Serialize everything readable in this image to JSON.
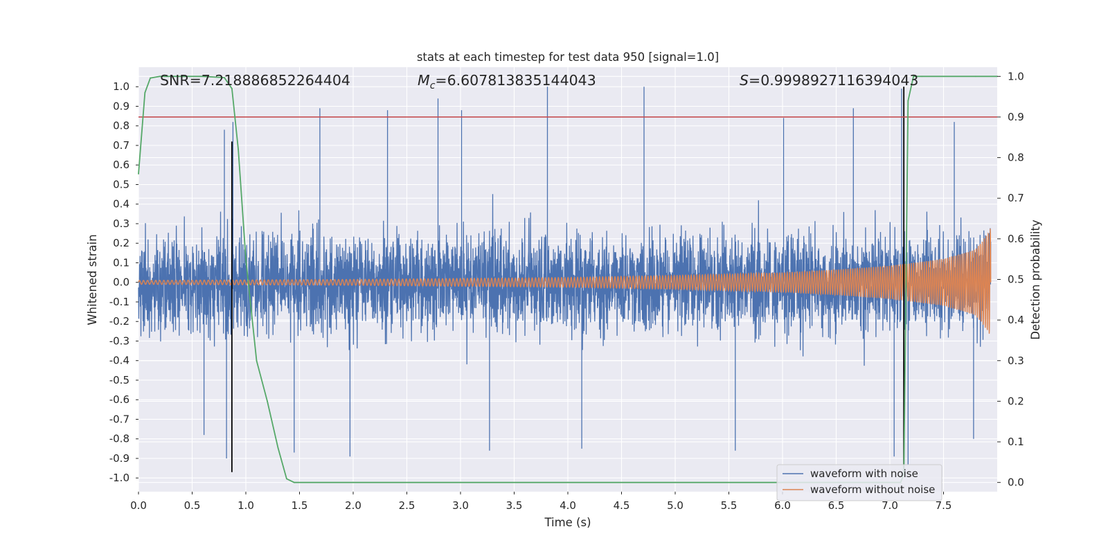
{
  "chart_data": {
    "type": "line",
    "title": "stats at each timestep for test data 950 [signal=1.0]",
    "xlabel": "Time (s)",
    "ylabel": "Whitened strain",
    "y2label": "Detection probability",
    "xlim": [
      0.0,
      8.0
    ],
    "ylim": [
      -1.07,
      1.1
    ],
    "y2lim": [
      -0.0227,
      1.0227
    ],
    "xticks": [
      0.0,
      0.5,
      1.0,
      1.5,
      2.0,
      2.5,
      3.0,
      3.5,
      4.0,
      4.5,
      5.0,
      5.5,
      6.0,
      6.5,
      7.0,
      7.5
    ],
    "xtick_labels": [
      "0.0",
      "0.5",
      "1.0",
      "1.5",
      "2.0",
      "2.5",
      "3.0",
      "3.5",
      "4.0",
      "4.5",
      "5.0",
      "5.5",
      "6.0",
      "6.5",
      "7.0",
      "7.5"
    ],
    "yticks": [
      1.0,
      0.9,
      0.8,
      0.7,
      0.6,
      0.5,
      0.4,
      0.3,
      0.2,
      0.1,
      0.0,
      -0.1,
      -0.2,
      -0.3,
      -0.4,
      -0.5,
      -0.6,
      -0.7,
      -0.8,
      -0.9,
      -1.0
    ],
    "ytick_labels": [
      "1.0",
      "0.9",
      "0.8",
      "0.7",
      "0.6",
      "0.5",
      "0.4",
      "0.3",
      "0.2",
      "0.1",
      "0.0",
      "-0.1",
      "-0.2",
      "-0.3",
      "-0.4",
      "-0.5",
      "-0.6",
      "-0.7",
      "-0.8",
      "-0.9",
      "-1.0"
    ],
    "y2ticks": [
      1.0,
      0.9,
      0.8,
      0.7,
      0.6,
      0.5,
      0.4,
      0.3,
      0.2,
      0.1,
      0.0
    ],
    "y2tick_labels": [
      "1.0",
      "0.9",
      "0.8",
      "0.7",
      "0.6",
      "0.5",
      "0.4",
      "0.3",
      "0.2",
      "0.1",
      "0.0"
    ],
    "annotations": {
      "snr": "SNR=7.218886852264404",
      "mc_symbol": "M",
      "mc_sub": "c",
      "mc_value": "=6.607813835144043",
      "s_symbol": "S",
      "s_value": "=0.9998927116394043"
    },
    "threshold": {
      "value": 0.9,
      "axis": "right",
      "color": "#c44e52"
    },
    "vertical_markers": [
      {
        "x": 0.87,
        "y_range": [
          -0.97,
          0.72
        ]
      },
      {
        "x": 7.13,
        "y_range": [
          -0.97,
          1.0
        ]
      }
    ],
    "series": [
      {
        "name": "waveform with noise",
        "color": "#4c72b0",
        "axis": "left",
        "start": 0.0,
        "end": 7.94,
        "amplitude_envelope": {
          "typical": 0.4,
          "max_peak": 1.0,
          "min_peak": -0.93
        },
        "peaks": [
          {
            "x": 0.8,
            "y": 0.78
          },
          {
            "x": 0.88,
            "y": 0.82
          },
          {
            "x": 1.69,
            "y": 0.89
          },
          {
            "x": 2.32,
            "y": 0.88
          },
          {
            "x": 2.79,
            "y": 0.94
          },
          {
            "x": 3.01,
            "y": 0.88
          },
          {
            "x": 3.81,
            "y": 1.0
          },
          {
            "x": 4.71,
            "y": 1.0
          },
          {
            "x": 6.66,
            "y": 0.89
          },
          {
            "x": 7.11,
            "y": 0.99
          },
          {
            "x": 6.01,
            "y": 0.84
          },
          {
            "x": 7.6,
            "y": 0.82
          },
          {
            "x": 0.61,
            "y": -0.78
          },
          {
            "x": 0.82,
            "y": -0.9
          },
          {
            "x": 1.45,
            "y": -0.87
          },
          {
            "x": 1.97,
            "y": -0.89
          },
          {
            "x": 3.27,
            "y": -0.86
          },
          {
            "x": 4.13,
            "y": -0.85
          },
          {
            "x": 5.56,
            "y": -0.86
          },
          {
            "x": 7.04,
            "y": -0.89
          },
          {
            "x": 7.17,
            "y": -0.93
          },
          {
            "x": 7.78,
            "y": -0.8
          }
        ]
      },
      {
        "name": "waveform without noise",
        "color": "#dd8452",
        "axis": "left",
        "start": 0.0,
        "end": 7.94,
        "envelope_points": [
          [
            0.0,
            0.01
          ],
          [
            2.0,
            0.015
          ],
          [
            4.0,
            0.025
          ],
          [
            5.0,
            0.035
          ],
          [
            6.0,
            0.05
          ],
          [
            6.5,
            0.065
          ],
          [
            7.0,
            0.085
          ],
          [
            7.5,
            0.12
          ],
          [
            7.8,
            0.17
          ],
          [
            7.9,
            0.24
          ],
          [
            7.94,
            0.28
          ]
        ],
        "chirp_cycles": 210
      },
      {
        "name": "detection probability",
        "color": "#55a868",
        "axis": "right",
        "x": [
          0.0,
          0.06,
          0.11,
          0.2,
          0.4,
          0.6,
          0.8,
          0.87,
          0.93,
          1.0,
          1.1,
          1.2,
          1.3,
          1.38,
          1.45,
          2.0,
          3.0,
          4.0,
          5.0,
          6.0,
          7.0,
          7.1,
          7.13,
          7.17,
          7.22,
          7.3,
          7.5,
          7.8,
          8.0
        ],
        "y": [
          0.76,
          0.96,
          0.996,
          1.0,
          1.0,
          1.0,
          0.997,
          0.97,
          0.82,
          0.55,
          0.3,
          0.2,
          0.085,
          0.009,
          0.0,
          0.0,
          0.0,
          0.0,
          0.0,
          0.0,
          0.0,
          0.0,
          0.02,
          0.94,
          1.0,
          1.0,
          1.0,
          1.0,
          1.0
        ]
      }
    ],
    "legend": {
      "location": "lower-right",
      "entries": [
        {
          "label": "waveform with noise",
          "color": "#4c72b0"
        },
        {
          "label": "waveform without noise",
          "color": "#dd8452"
        }
      ]
    },
    "style": {
      "background": "#eaeaf2",
      "grid": true,
      "grid_color": "#ffffff",
      "black_marker_color": "#000000"
    }
  }
}
